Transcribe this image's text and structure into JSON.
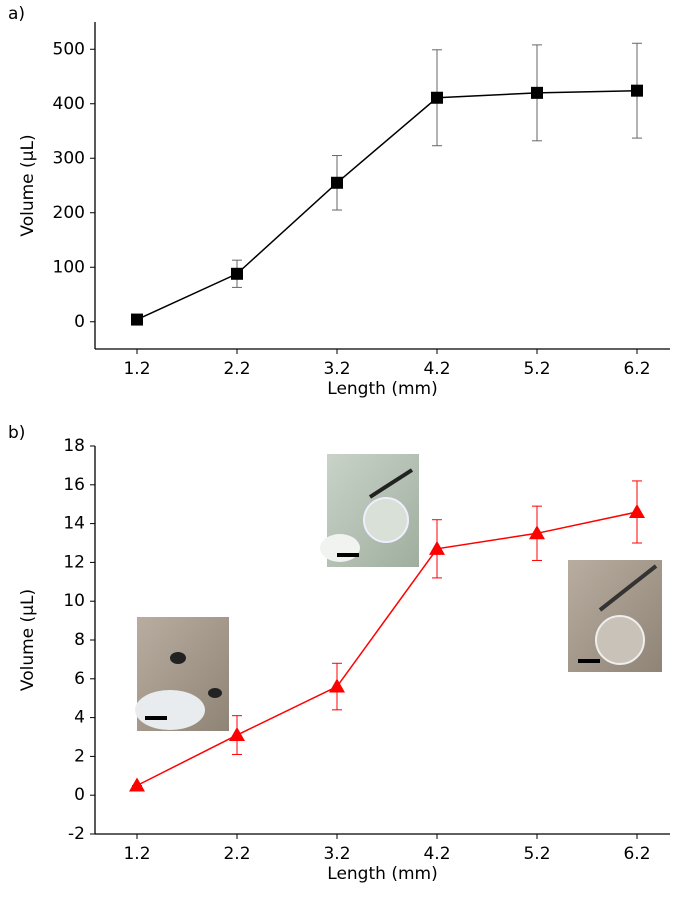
{
  "chart_data": [
    {
      "type": "line",
      "label": "a)",
      "xlabel": "Length (mm)",
      "ylabel": "Volume (µL)",
      "x": [
        1.2,
        2.2,
        3.2,
        4.2,
        5.2,
        6.2
      ],
      "xlim": [
        0.78,
        6.53
      ],
      "xticks": [
        1.2,
        2.2,
        3.2,
        4.2,
        5.2,
        6.2
      ],
      "ylim": [
        -50,
        550
      ],
      "yticks": [
        0,
        100,
        200,
        300,
        400,
        500
      ],
      "series": [
        {
          "color": "#000000",
          "error_color": "#666666",
          "marker": "square",
          "values": [
            4,
            88,
            255,
            411,
            420,
            424
          ],
          "errors": [
            2,
            25,
            50,
            88,
            88,
            87
          ]
        }
      ]
    },
    {
      "type": "line",
      "label": "b)",
      "xlabel": "Length (mm)",
      "ylabel": "Volume (µL)",
      "x": [
        1.2,
        2.2,
        3.2,
        4.2,
        5.2,
        6.2
      ],
      "xlim": [
        0.78,
        6.53
      ],
      "xticks": [
        1.2,
        2.2,
        3.2,
        4.2,
        5.2,
        6.2
      ],
      "ylim": [
        -2,
        18
      ],
      "yticks": [
        -2,
        0,
        2,
        4,
        6,
        8,
        10,
        12,
        14,
        16,
        18
      ],
      "series": [
        {
          "color": "#ff0000",
          "error_color": "#ff0000",
          "marker": "triangle",
          "values": [
            0.5,
            3.1,
            5.6,
            12.7,
            13.5,
            14.6
          ],
          "errors": [
            0,
            1.0,
            1.2,
            1.5,
            1.4,
            1.6
          ]
        }
      ]
    }
  ]
}
